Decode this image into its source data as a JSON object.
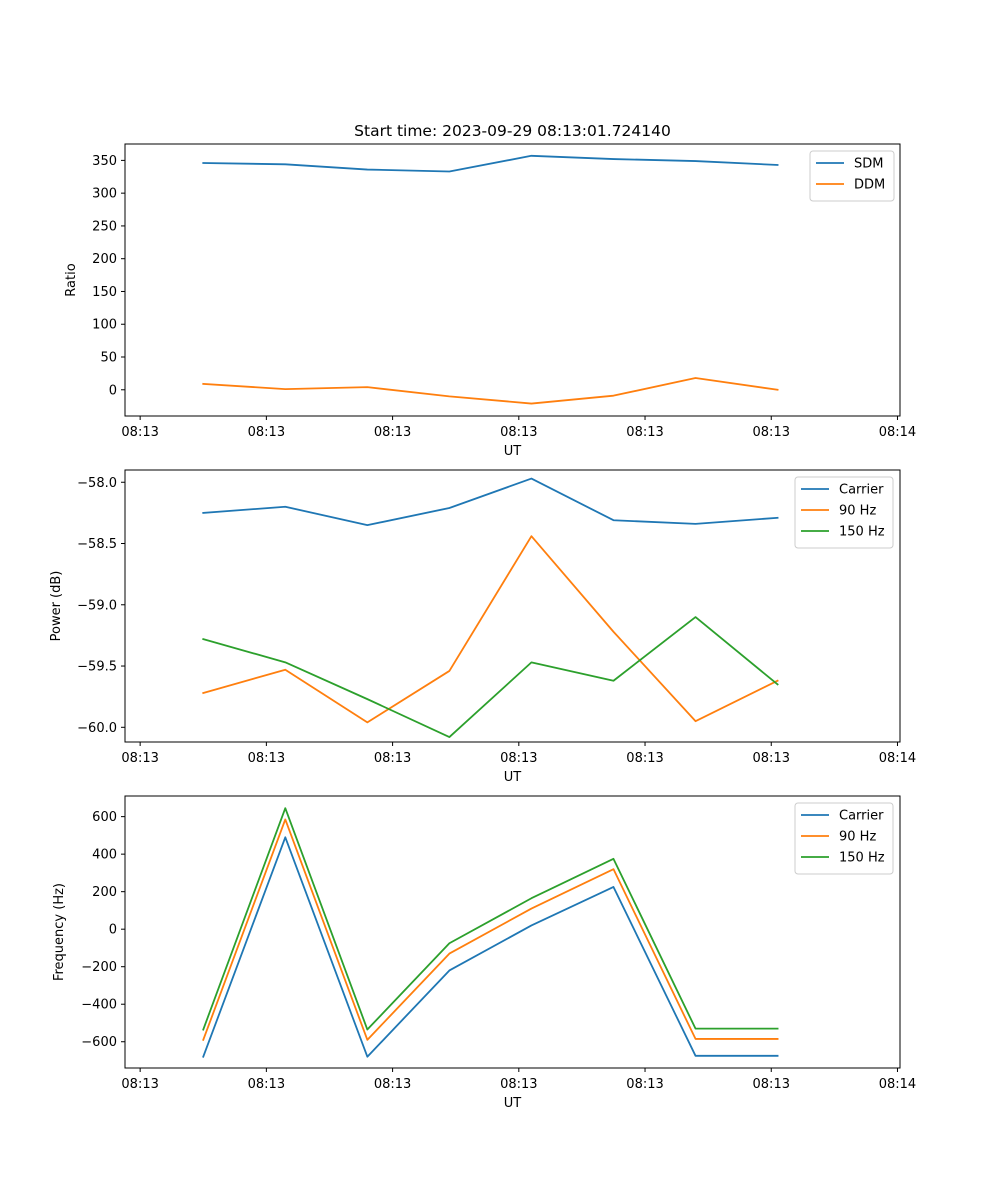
{
  "figure": {
    "title": "Start time: 2023-09-29 08:13:01.724140"
  },
  "chart_data": [
    {
      "type": "line",
      "xlabel": "UT",
      "ylabel": "Ratio",
      "x_tick_labels": [
        "08:13",
        "08:13",
        "08:13",
        "08:13",
        "08:13",
        "08:13",
        "08:14"
      ],
      "x_ticks": [
        0,
        1,
        2,
        3,
        4,
        5,
        6
      ],
      "xlim": [
        -0.12,
        6.02
      ],
      "y_ticks": [
        0,
        50,
        100,
        150,
        200,
        250,
        300,
        350
      ],
      "y_tick_labels": [
        "0",
        "50",
        "100",
        "150",
        "200",
        "250",
        "300",
        "350"
      ],
      "ylim": [
        -40,
        375
      ],
      "legend": "top-right",
      "x": [
        0.5,
        1.15,
        1.8,
        2.45,
        3.1,
        3.75,
        4.4,
        5.05
      ],
      "series": [
        {
          "name": "SDM",
          "color": "#1f77b4",
          "values": [
            346,
            344,
            336,
            333,
            357,
            352,
            349,
            343
          ]
        },
        {
          "name": "DDM",
          "color": "#ff7f0e",
          "values": [
            9,
            1,
            4,
            -10,
            -21,
            -9,
            18,
            0
          ]
        }
      ]
    },
    {
      "type": "line",
      "xlabel": "UT",
      "ylabel": "Power (dB)",
      "x_tick_labels": [
        "08:13",
        "08:13",
        "08:13",
        "08:13",
        "08:13",
        "08:13",
        "08:14"
      ],
      "x_ticks": [
        0,
        1,
        2,
        3,
        4,
        5,
        6
      ],
      "xlim": [
        -0.12,
        6.02
      ],
      "y_ticks": [
        -60.0,
        -59.5,
        -59.0,
        -58.5,
        -58.0
      ],
      "y_tick_labels": [
        "−60.0",
        "−59.5",
        "−59.0",
        "−58.5",
        "−58.0"
      ],
      "ylim": [
        -60.12,
        -57.9
      ],
      "legend": "top-right",
      "x": [
        0.5,
        1.15,
        1.8,
        2.45,
        3.1,
        3.75,
        4.4,
        5.05
      ],
      "series": [
        {
          "name": "Carrier",
          "color": "#1f77b4",
          "values": [
            -58.25,
            -58.2,
            -58.35,
            -58.21,
            -57.97,
            -58.31,
            -58.34,
            -58.29
          ]
        },
        {
          "name": "90 Hz",
          "color": "#ff7f0e",
          "values": [
            -59.72,
            -59.53,
            -59.96,
            -59.54,
            -58.44,
            -59.22,
            -59.95,
            -59.62
          ]
        },
        {
          "name": "150 Hz",
          "color": "#2ca02c",
          "values": [
            -59.28,
            -59.47,
            -59.77,
            -60.08,
            -59.47,
            -59.62,
            -59.1,
            -59.65
          ]
        }
      ]
    },
    {
      "type": "line",
      "xlabel": "UT",
      "ylabel": "Frequency (Hz)",
      "x_tick_labels": [
        "08:13",
        "08:13",
        "08:13",
        "08:13",
        "08:13",
        "08:13",
        "08:14"
      ],
      "x_ticks": [
        0,
        1,
        2,
        3,
        4,
        5,
        6
      ],
      "xlim": [
        -0.12,
        6.02
      ],
      "y_ticks": [
        -600,
        -400,
        -200,
        0,
        200,
        400,
        600
      ],
      "y_tick_labels": [
        "−600",
        "−400",
        "−200",
        "0",
        "200",
        "400",
        "600"
      ],
      "ylim": [
        -740,
        710
      ],
      "legend": "top-right",
      "x": [
        0.5,
        1.15,
        1.8,
        2.45,
        3.1,
        3.75,
        4.4,
        5.05
      ],
      "series": [
        {
          "name": "Carrier",
          "color": "#1f77b4",
          "values": [
            -680,
            490,
            -680,
            -220,
            20,
            225,
            -675,
            -675
          ]
        },
        {
          "name": "90 Hz",
          "color": "#ff7f0e",
          "values": [
            -590,
            585,
            -590,
            -130,
            110,
            320,
            -585,
            -585
          ]
        },
        {
          "name": "150 Hz",
          "color": "#2ca02c",
          "values": [
            -535,
            645,
            -535,
            -75,
            165,
            375,
            -530,
            -530
          ]
        }
      ]
    }
  ]
}
